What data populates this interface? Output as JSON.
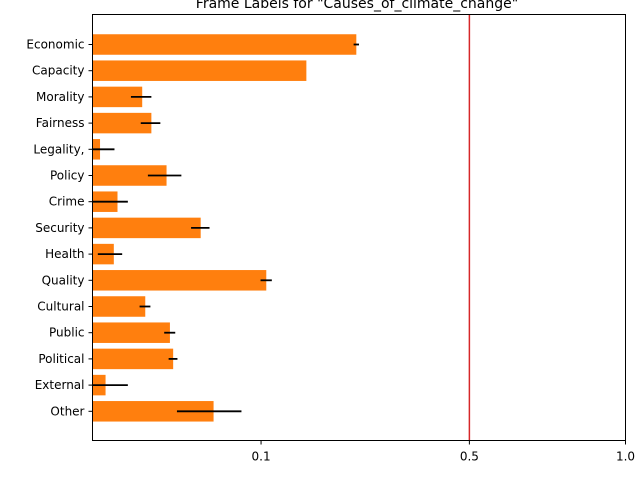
{
  "chart_data": {
    "type": "bar",
    "orientation": "horizontal",
    "title": "Frame Labels for \"Causes_of_climate_change\"",
    "xlabel": "",
    "ylabel": "",
    "x_scale": "sqrt",
    "xlim": [
      0,
      1.0
    ],
    "xticks": [
      0.1,
      0.5,
      1.0
    ],
    "xtick_labels": [
      "0.1",
      "0.5",
      "1.0"
    ],
    "reference_line": {
      "x": 0.5,
      "color": "#d62728"
    },
    "bar_color": "#ff7f0e",
    "error_color": "#000000",
    "grid": false,
    "categories": [
      "Economic",
      "Capacity",
      "Morality",
      "Fairness",
      "Legality,",
      "Policy",
      "Crime",
      "Security",
      "Health",
      "Quality",
      "Cultural",
      "Public",
      "Political",
      "External",
      "Other"
    ],
    "values": [
      0.245,
      0.161,
      0.0087,
      0.0122,
      0.0002,
      0.0193,
      0.0022,
      0.0412,
      0.0016,
      0.1063,
      0.0098,
      0.0211,
      0.0229,
      0.0006,
      0.0516
    ],
    "errors": [
      0.005,
      0.0,
      0.0035,
      0.004,
      0.0015,
      0.0085,
      0.0022,
      0.007,
      0.0015,
      0.0069,
      0.002,
      0.003,
      0.0025,
      0.0038,
      0.0265
    ]
  }
}
